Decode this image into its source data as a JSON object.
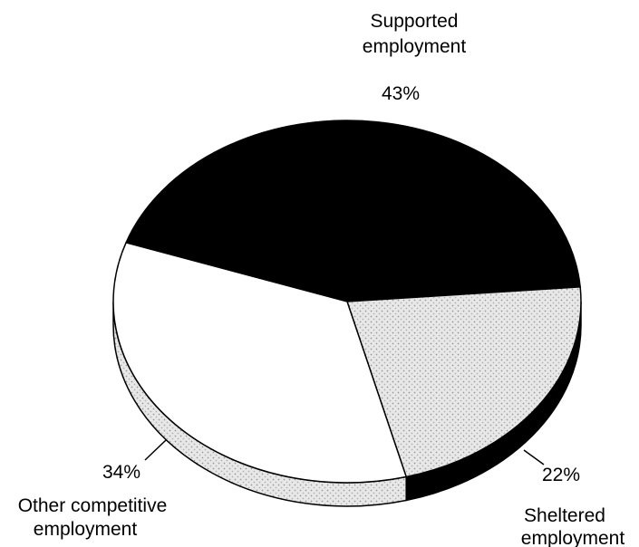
{
  "chart_data": {
    "type": "pie",
    "style": "3d",
    "slices": [
      {
        "label": "Supported employment",
        "value": 43,
        "value_label": "43%",
        "fill": "#000000",
        "side_fill": "#000000"
      },
      {
        "label": "Sheltered employment",
        "value": 22,
        "value_label": "22%",
        "fill": "#d9d9d9",
        "side_fill": "#000000"
      },
      {
        "label": "Other competitive employment",
        "value": 34,
        "value_label": "34%",
        "fill": "#ffffff",
        "side_fill": "#d9d9d9"
      }
    ],
    "label_lines": {
      "supported": [
        "Supported",
        "employment"
      ],
      "sheltered": [
        "Sheltered",
        "employment"
      ],
      "other": [
        "Other competitive",
        "employment"
      ]
    },
    "legend": "none"
  }
}
